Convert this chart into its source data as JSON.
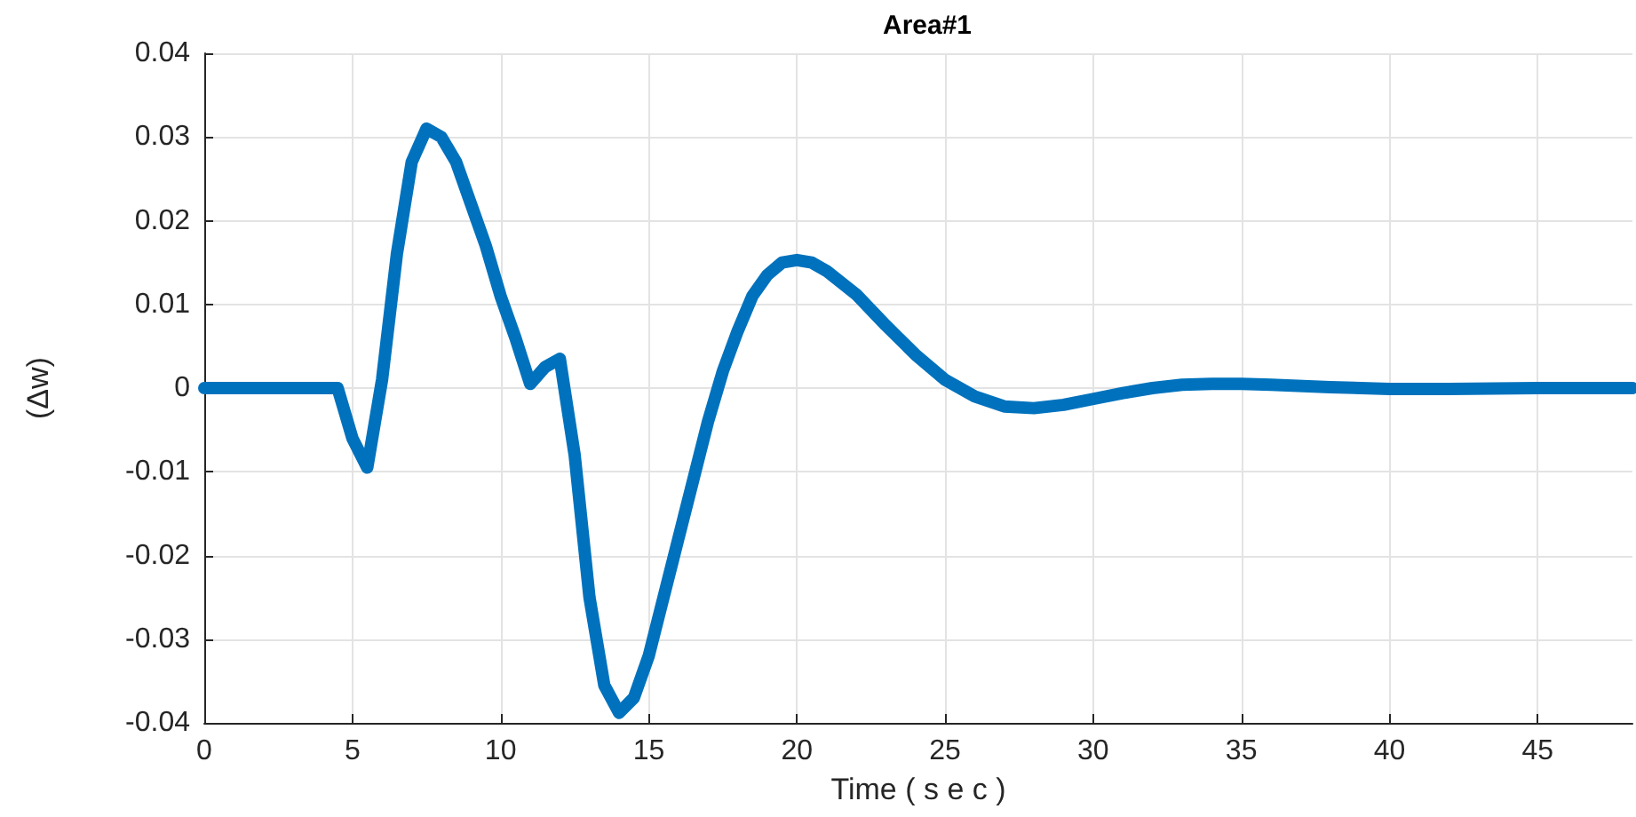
{
  "chart_data": {
    "type": "line",
    "title": "Area#1",
    "xlabel": "Time ( s e c )",
    "ylabel": "(Δw)",
    "xlim": [
      0,
      48.2
    ],
    "xticks": [
      0,
      5,
      10,
      15,
      20,
      25,
      30,
      35,
      40,
      45
    ],
    "ylim": [
      -0.04,
      0.04
    ],
    "yticks": [
      -0.04,
      -0.03,
      -0.02,
      -0.01,
      0,
      0.01,
      0.02,
      0.03,
      0.04
    ],
    "grid": true,
    "marker": "none",
    "line_style": "solid",
    "series": [
      {
        "color": "#0072bd",
        "x": [
          0,
          4.5,
          5,
          5.5,
          6,
          6.5,
          7,
          7.5,
          8,
          8.5,
          9,
          9.5,
          10,
          10.5,
          11,
          11.5,
          12,
          12.5,
          13,
          13.5,
          14,
          14.5,
          15,
          15.5,
          16,
          16.5,
          17,
          17.5,
          18,
          18.5,
          19,
          19.5,
          20,
          20.5,
          21,
          22,
          23,
          24,
          25,
          26,
          27,
          28,
          29,
          30,
          31,
          32,
          33,
          34,
          35,
          36,
          38,
          40,
          42,
          45,
          48.2
        ],
        "values": [
          0,
          0,
          -0.006,
          -0.0095,
          0.001,
          0.016,
          0.027,
          0.031,
          0.03,
          0.027,
          0.022,
          0.017,
          0.011,
          0.006,
          0.0005,
          0.0025,
          0.0035,
          -0.008,
          -0.025,
          -0.0355,
          -0.0388,
          -0.037,
          -0.032,
          -0.025,
          -0.018,
          -0.011,
          -0.004,
          0.002,
          0.0068,
          0.011,
          0.0135,
          0.015,
          0.0153,
          0.015,
          0.014,
          0.0112,
          0.0075,
          0.004,
          0.001,
          -0.001,
          -0.0022,
          -0.0024,
          -0.002,
          -0.0013,
          -0.0006,
          0,
          0.0004,
          0.0005,
          0.0005,
          0.0004,
          0.0001,
          -0.0001,
          -0.0001,
          0,
          0
        ]
      }
    ]
  }
}
